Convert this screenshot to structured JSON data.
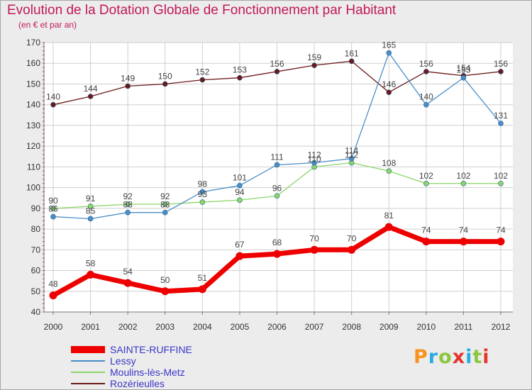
{
  "header": {
    "title": "Evolution de la Dotation Globale de Fonctionnement par Habitant",
    "subtitle": "(en € et par an)"
  },
  "logo": {
    "text": "Proxiti",
    "colors": [
      "#f7931e",
      "#29abe2",
      "#8cc63f",
      "#e5352b",
      "#29abe2",
      "#8cc63f",
      "#e5352b"
    ]
  },
  "chart_data": {
    "type": "line",
    "x": [
      2000,
      2001,
      2002,
      2003,
      2004,
      2005,
      2006,
      2007,
      2008,
      2009,
      2010,
      2011,
      2012
    ],
    "ylim": [
      40,
      170
    ],
    "yticks": [
      40,
      50,
      60,
      70,
      80,
      90,
      100,
      110,
      120,
      130,
      140,
      150,
      160,
      170
    ],
    "grid": true,
    "legend_position": "bottom-left",
    "series": [
      {
        "name": "SAINTE-RUFFINE",
        "color": "#ee0000",
        "width": 7,
        "values": [
          48,
          58,
          54,
          50,
          51,
          67,
          68,
          70,
          70,
          81,
          74,
          74,
          74
        ]
      },
      {
        "name": "Lessy",
        "color": "#4a8ec8",
        "width": 1.3,
        "values": [
          86,
          85,
          88,
          88,
          98,
          101,
          111,
          112,
          114,
          165,
          140,
          153,
          131
        ]
      },
      {
        "name": "Moulins-lès-Metz",
        "color": "#8bd66a",
        "width": 1.3,
        "values": [
          90,
          91,
          92,
          92,
          93,
          94,
          96,
          110,
          112,
          108,
          102,
          102,
          102
        ]
      },
      {
        "name": "Rozérieulles",
        "color": "#6b1a1a",
        "width": 1.3,
        "values": [
          140,
          144,
          149,
          150,
          152,
          153,
          156,
          159,
          161,
          146,
          156,
          154,
          156
        ]
      }
    ]
  }
}
